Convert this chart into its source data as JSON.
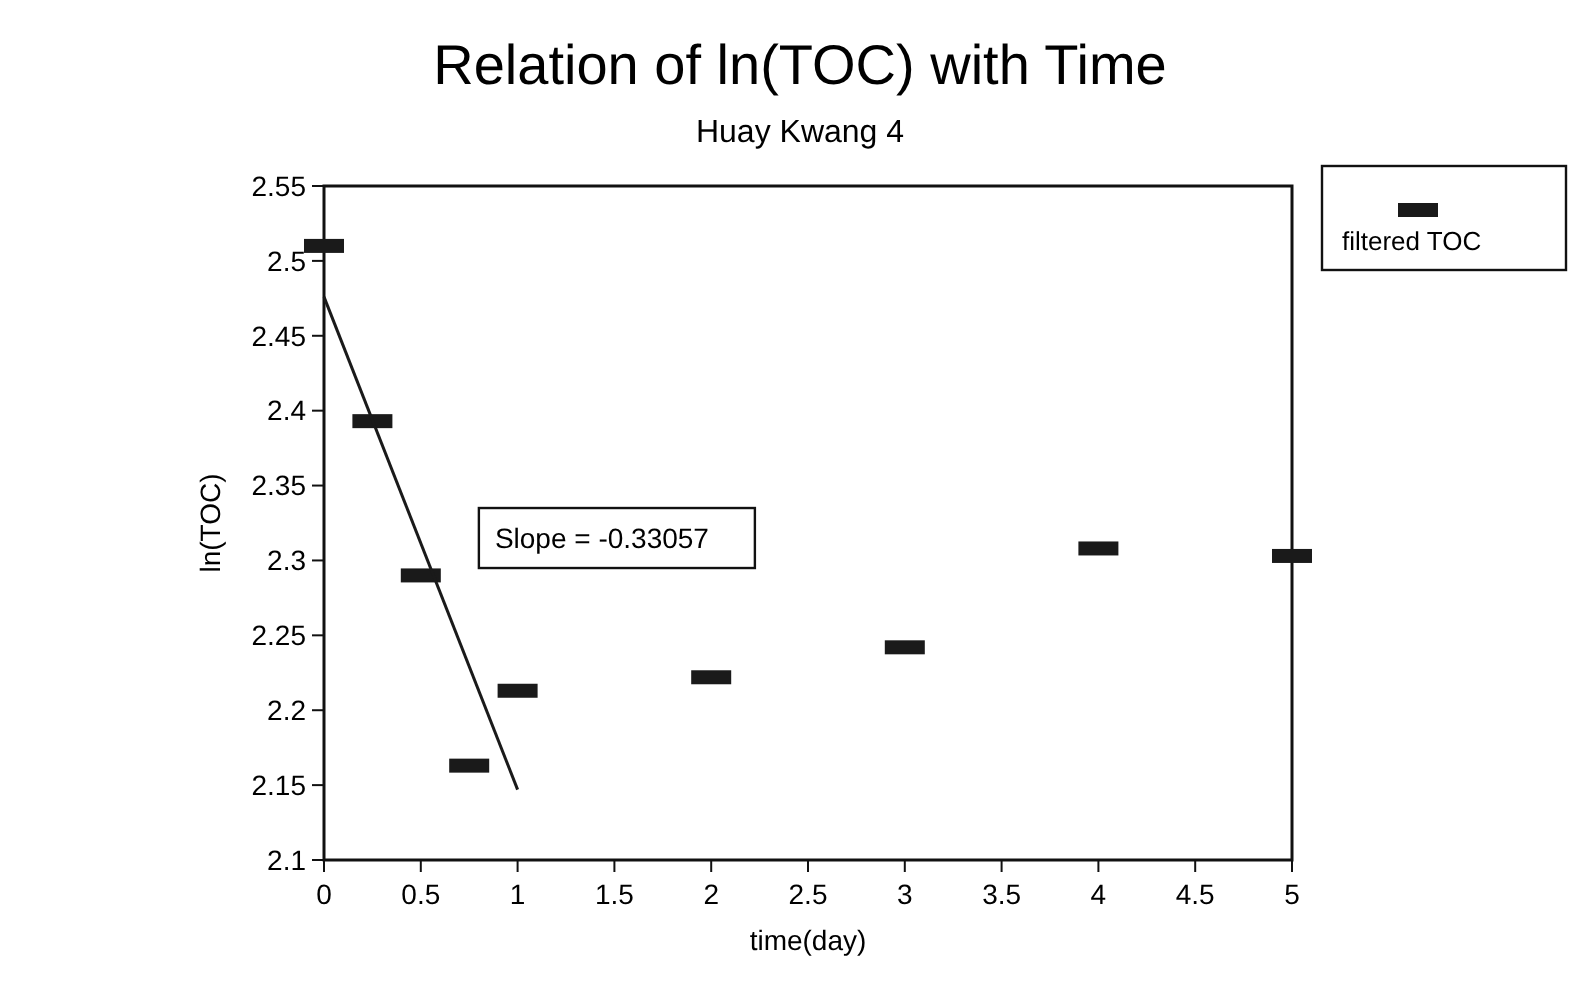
{
  "chart_data": {
    "type": "scatter",
    "title": "Relation of ln(TOC) with Time",
    "subtitle": "Huay Kwang 4",
    "xlabel": "time(day)",
    "ylabel": "ln(TOC)",
    "xlim": [
      0,
      5
    ],
    "xticks": [
      0,
      0.5,
      1,
      1.5,
      2,
      2.5,
      3,
      3.5,
      4,
      4.5,
      5
    ],
    "ylim": [
      2.1,
      2.55
    ],
    "yticks": [
      2.1,
      2.15,
      2.2,
      2.25,
      2.3,
      2.35,
      2.4,
      2.45,
      2.5,
      2.55
    ],
    "legend": "top right",
    "marker": "square",
    "grid": false,
    "annotations": [
      "Slope = -0.33057"
    ],
    "series": [
      {
        "name": "filtered TOC",
        "color": "#1a1a1a",
        "x": [
          0,
          0.25,
          0.5,
          0.75,
          1,
          2,
          3,
          4,
          5
        ],
        "values": [
          2.51,
          2.393,
          2.29,
          2.163,
          2.213,
          2.222,
          2.242,
          2.308,
          2.303
        ]
      },
      {
        "type": "line",
        "color": "#1a1a1a",
        "marker": "none",
        "x": [
          0,
          1
        ],
        "values": [
          2.476,
          2.147
        ]
      }
    ]
  }
}
